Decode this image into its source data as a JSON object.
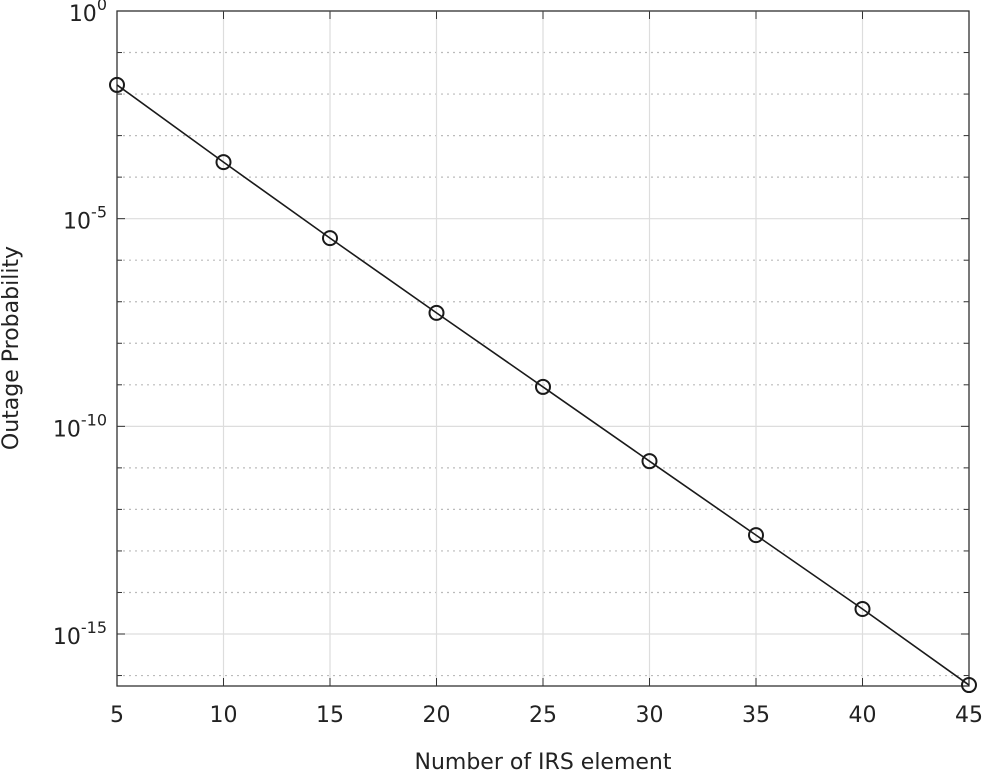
{
  "chart_data": {
    "type": "line",
    "xlabel": "Number of IRS element",
    "ylabel": "Outage Probability",
    "x": [
      5,
      10,
      15,
      20,
      25,
      30,
      35,
      40,
      45
    ],
    "series": [
      {
        "color": "#1a1a1a",
        "marker": "circle",
        "values": [
          0.0166,
          0.00023,
          3.4e-06,
          5.4e-08,
          8.9e-10,
          1.45e-11,
          2.4e-13,
          4e-15,
          5.9e-17
        ]
      }
    ],
    "xlim": [
      5,
      45
    ],
    "xticks": [
      5,
      10,
      15,
      20,
      25,
      30,
      35,
      40,
      45
    ],
    "ylim": [
      5.6e-17,
      1
    ],
    "yscale": "log",
    "yticks": [
      {
        "value": 1,
        "label": "10^0"
      },
      {
        "value": 1e-05,
        "label": "10^-5"
      },
      {
        "value": 1e-10,
        "label": "10^-10"
      },
      {
        "value": 1e-15,
        "label": "10^-15"
      }
    ],
    "yminorticks": [
      0.1,
      0.01,
      0.001,
      0.0001,
      1e-06,
      1e-07,
      1e-08,
      1e-09,
      1e-11,
      1e-12,
      1e-13,
      1e-14,
      1e-16
    ],
    "grid": true,
    "minor_grid": true
  }
}
